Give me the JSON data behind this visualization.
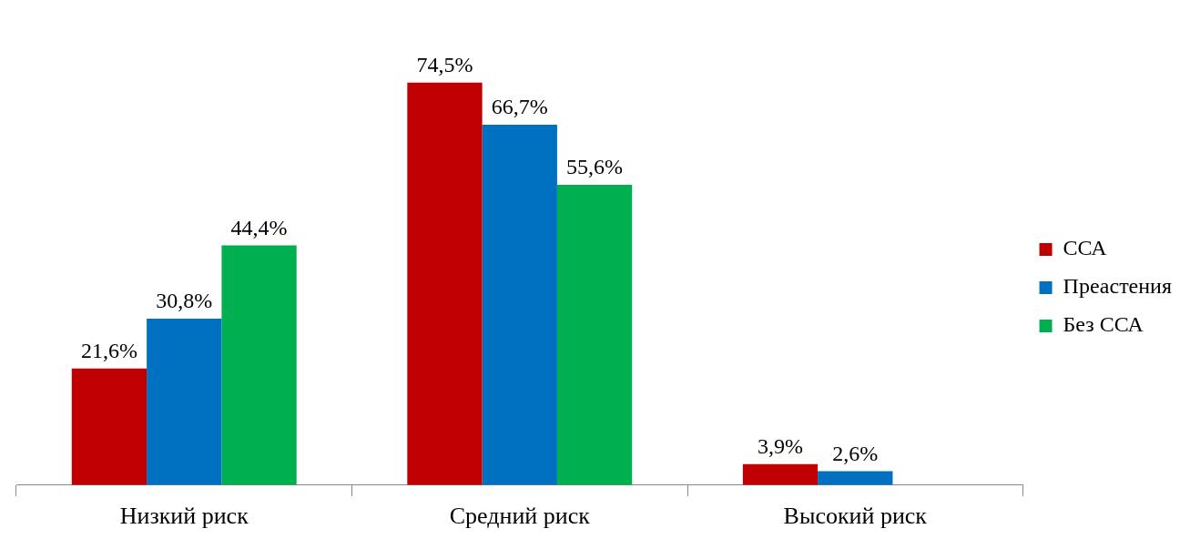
{
  "chart_data": {
    "type": "bar",
    "categories": [
      "Низкий риск",
      "Средний риск",
      "Высокий риск"
    ],
    "series": [
      {
        "name": "ССА",
        "color": "#c00000",
        "values": [
          21.6,
          74.5,
          3.9
        ],
        "value_labels": [
          "21,6%",
          "74,5%",
          "3,9%"
        ]
      },
      {
        "name": "Преастения",
        "color": "#0070c0",
        "values": [
          30.8,
          66.7,
          2.6
        ],
        "value_labels": [
          "30,8%",
          "66,7%",
          "2,6%"
        ]
      },
      {
        "name": "Без ССА",
        "color": "#00b050",
        "values": [
          44.4,
          55.6,
          null
        ],
        "value_labels": [
          "44,4%",
          "55,6%",
          null
        ]
      }
    ],
    "relative": false,
    "legend": "right",
    "grid": false
  }
}
